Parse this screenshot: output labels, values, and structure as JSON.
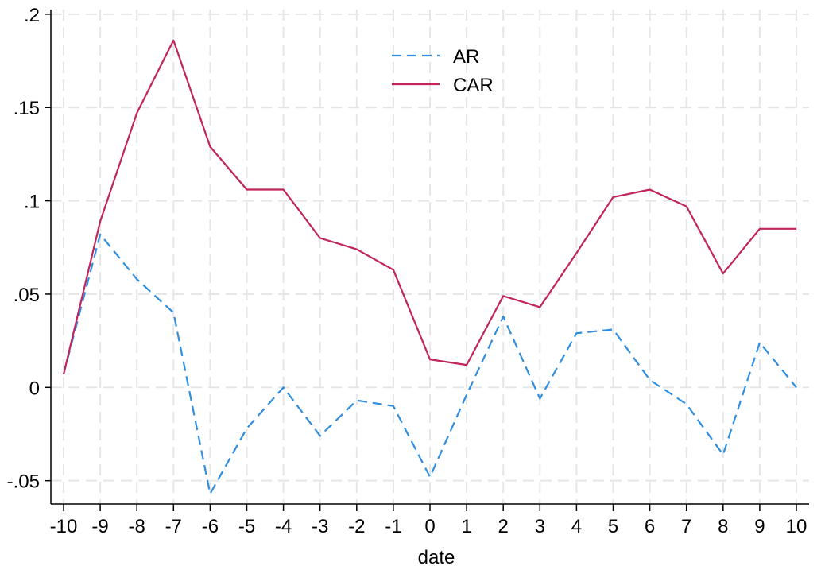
{
  "chart_data": {
    "type": "line",
    "title": "",
    "xlabel": "date",
    "ylabel": "",
    "xlim": [
      -10,
      10
    ],
    "ylim": [
      -0.0625,
      0.2025
    ],
    "x": [
      -10,
      -9,
      -8,
      -7,
      -6,
      -5,
      -4,
      -3,
      -2,
      -1,
      0,
      1,
      2,
      3,
      4,
      5,
      6,
      7,
      8,
      9,
      10
    ],
    "x_ticks": [
      "-10",
      "-9",
      "-8",
      "-7",
      "-6",
      "-5",
      "-4",
      "-3",
      "-2",
      "-1",
      "0",
      "1",
      "2",
      "3",
      "4",
      "5",
      "6",
      "7",
      "8",
      "9",
      "10"
    ],
    "y_ticks": [
      {
        "value": -0.05,
        "label": "-.05"
      },
      {
        "value": 0,
        "label": "0"
      },
      {
        "value": 0.05,
        "label": ".05"
      },
      {
        "value": 0.1,
        "label": ".1"
      },
      {
        "value": 0.15,
        "label": ".15"
      },
      {
        "value": 0.2,
        "label": ".2"
      }
    ],
    "grid": true,
    "legend_position": "top-center",
    "series": [
      {
        "name": "AR",
        "style": "dashed",
        "color": "#2f8ee0",
        "values": [
          0.007,
          0.082,
          0.058,
          0.04,
          -0.057,
          -0.022,
          0.0,
          -0.026,
          -0.007,
          -0.01,
          -0.048,
          -0.004,
          0.038,
          -0.006,
          0.029,
          0.031,
          0.004,
          -0.009,
          -0.036,
          0.024,
          0.0
        ]
      },
      {
        "name": "CAR",
        "style": "solid",
        "color": "#c1245a",
        "values": [
          0.007,
          0.089,
          0.147,
          0.186,
          0.129,
          0.106,
          0.106,
          0.08,
          0.074,
          0.063,
          0.015,
          0.012,
          0.049,
          0.043,
          0.072,
          0.102,
          0.106,
          0.097,
          0.061,
          0.085,
          0.085
        ]
      }
    ]
  }
}
